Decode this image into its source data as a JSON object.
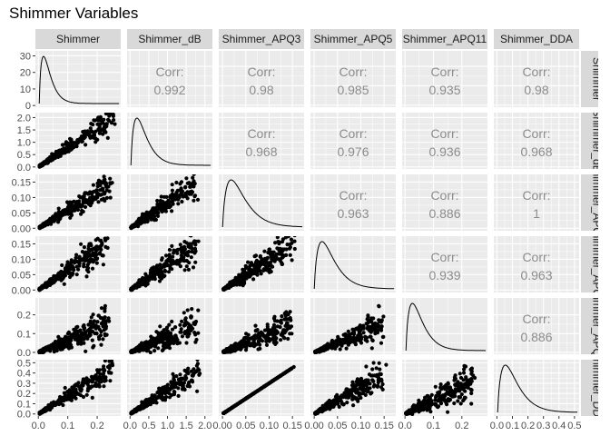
{
  "title": "Shimmer Variables",
  "variables": [
    "Shimmer",
    "Shimmer_dB",
    "Shimmer_APQ3",
    "Shimmer_APQ5",
    "Shimmer_APQ11",
    "Shimmer_DDA"
  ],
  "row_strip_labels": [
    "Shimmer",
    "Shimmer_dB",
    "Shimmer_APQ3",
    "Shimmer_APQ5",
    "Shimmer_APQ11",
    "Shimmer_DDA"
  ],
  "corr_label": "Corr:",
  "colors": {
    "panel_bg": "#ebebeb",
    "grid": "#ffffff",
    "strip_bg": "#d9d9d9",
    "points": "#000000",
    "corr_text": "#8c8c8c",
    "tick_text": "#4d4d4d"
  },
  "chart_data": {
    "type": "scatter",
    "subtype": "pairs-matrix",
    "title": "Shimmer Variables",
    "layout": "upper triangle: correlation text; diagonal: density curves; lower triangle: scatter plots",
    "grid": true,
    "axes": {
      "Shimmer": {
        "ticks": [
          0.0,
          0.1,
          0.2
        ],
        "tick_labels": [
          "0.0",
          "0.1",
          "0.2"
        ],
        "range": [
          -0.01,
          0.28
        ],
        "y_ticks_diag": [
          0,
          10,
          20,
          30
        ],
        "y_range_diag": [
          -1,
          33
        ]
      },
      "Shimmer_dB": {
        "ticks": [
          0.0,
          0.5,
          1.0,
          1.5,
          2.0
        ],
        "tick_labels": [
          "0.0",
          "0.5",
          "1.0",
          "1.5",
          "2.0"
        ],
        "range": [
          -0.08,
          2.2
        ]
      },
      "Shimmer_APQ3": {
        "ticks": [
          0.0,
          0.05,
          0.1,
          0.15
        ],
        "tick_labels": [
          "0.00",
          "0.05",
          "0.10",
          "0.15"
        ],
        "range": [
          -0.008,
          0.175
        ]
      },
      "Shimmer_APQ5": {
        "ticks": [
          0.0,
          0.05,
          0.1,
          0.15
        ],
        "tick_labels": [
          "0.00",
          "0.05",
          "0.10",
          "0.15"
        ],
        "range": [
          -0.008,
          0.175
        ]
      },
      "Shimmer_APQ11": {
        "ticks": [
          0.0,
          0.1,
          0.2
        ],
        "tick_labels": [
          "0.0",
          "0.1",
          "0.2"
        ],
        "range": [
          -0.01,
          0.29
        ]
      },
      "Shimmer_DDA": {
        "ticks": [
          0.0,
          0.1,
          0.2,
          0.3,
          0.4,
          0.5
        ],
        "tick_labels": [
          "0.0",
          "0.1",
          "0.2",
          "0.3",
          "0.4",
          "0.5"
        ],
        "range": [
          -0.02,
          0.53
        ]
      }
    },
    "correlations": [
      {
        "row": 0,
        "col": 1,
        "value": "0.992"
      },
      {
        "row": 0,
        "col": 2,
        "value": "0.98"
      },
      {
        "row": 0,
        "col": 3,
        "value": "0.985"
      },
      {
        "row": 0,
        "col": 4,
        "value": "0.935"
      },
      {
        "row": 0,
        "col": 5,
        "value": "0.98"
      },
      {
        "row": 1,
        "col": 2,
        "value": "0.968"
      },
      {
        "row": 1,
        "col": 3,
        "value": "0.976"
      },
      {
        "row": 1,
        "col": 4,
        "value": "0.936"
      },
      {
        "row": 1,
        "col": 5,
        "value": "0.968"
      },
      {
        "row": 2,
        "col": 3,
        "value": "0.963"
      },
      {
        "row": 2,
        "col": 4,
        "value": "0.886"
      },
      {
        "row": 2,
        "col": 5,
        "value": "1"
      },
      {
        "row": 3,
        "col": 4,
        "value": "0.939"
      },
      {
        "row": 3,
        "col": 5,
        "value": "0.963"
      },
      {
        "row": 4,
        "col": 5,
        "value": "0.886"
      }
    ],
    "density_peak_fraction_of_range": [
      0.1,
      0.14,
      0.2,
      0.18,
      0.15,
      0.18
    ],
    "scatter_trends": [
      {
        "row": 1,
        "col": 0,
        "x_max": 0.27,
        "y_at_x_max": 2.1,
        "spread": 0.16
      },
      {
        "row": 2,
        "col": 0,
        "x_max": 0.27,
        "y_at_x_max": 0.16,
        "spread": 0.18
      },
      {
        "row": 2,
        "col": 1,
        "x_max": 1.9,
        "y_at_x_max": 0.16,
        "spread": 0.2
      },
      {
        "row": 3,
        "col": 0,
        "x_max": 0.25,
        "y_at_x_max": 0.16,
        "spread": 0.2
      },
      {
        "row": 3,
        "col": 1,
        "x_max": 1.9,
        "y_at_x_max": 0.16,
        "spread": 0.22
      },
      {
        "row": 3,
        "col": 2,
        "x_max": 0.16,
        "y_at_x_max": 0.16,
        "spread": 0.22
      },
      {
        "row": 4,
        "col": 0,
        "x_max": 0.25,
        "y_at_x_max": 0.16,
        "spread": 0.35
      },
      {
        "row": 4,
        "col": 1,
        "x_max": 1.9,
        "y_at_x_max": 0.16,
        "spread": 0.35
      },
      {
        "row": 4,
        "col": 2,
        "x_max": 0.16,
        "y_at_x_max": 0.16,
        "spread": 0.35
      },
      {
        "row": 4,
        "col": 3,
        "x_max": 0.16,
        "y_at_x_max": 0.16,
        "spread": 0.3
      },
      {
        "row": 5,
        "col": 0,
        "x_max": 0.27,
        "y_at_x_max": 0.48,
        "spread": 0.16
      },
      {
        "row": 5,
        "col": 1,
        "x_max": 2.0,
        "y_at_x_max": 0.46,
        "spread": 0.18
      },
      {
        "row": 5,
        "col": 2,
        "x_max": 0.16,
        "y_at_x_max": 0.48,
        "spread": 0.0
      },
      {
        "row": 5,
        "col": 3,
        "x_max": 0.16,
        "y_at_x_max": 0.42,
        "spread": 0.22
      },
      {
        "row": 5,
        "col": 4,
        "x_max": 0.26,
        "y_at_x_max": 0.35,
        "spread": 0.35
      }
    ]
  }
}
